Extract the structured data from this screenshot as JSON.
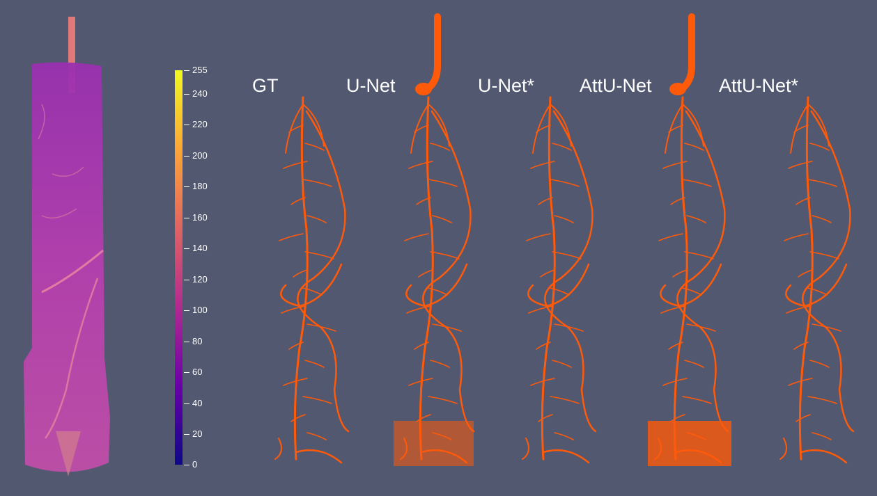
{
  "panels": [
    {
      "name": "GT",
      "cx": 440
    },
    {
      "name": "U-Net",
      "cx": 620
    },
    {
      "name": "U-Net*",
      "cx": 795
    },
    {
      "name": "AttU-Net",
      "cx": 985
    },
    {
      "name": "AttU-Net*",
      "cx": 1165
    }
  ],
  "colorbar": {
    "ticks": [
      "0",
      "20",
      "40",
      "60",
      "80",
      "100",
      "120",
      "140",
      "160",
      "180",
      "200",
      "220",
      "240",
      "255"
    ],
    "colormap": "plasma",
    "stops": [
      "#0d0887",
      "#6a00a8",
      "#b12a90",
      "#e16462",
      "#fca636",
      "#f0f921"
    ]
  },
  "colors": {
    "background": "#525870",
    "root": "#ff5a0a",
    "volume": "#b03fb0"
  }
}
